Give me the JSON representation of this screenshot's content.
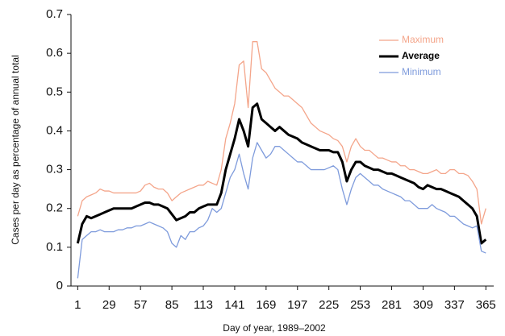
{
  "chart_data": {
    "type": "line",
    "xlabel": "Day of year, 1989–2002",
    "ylabel": "Cases per day as percentage of annual total",
    "x": [
      1,
      5,
      9,
      13,
      17,
      21,
      25,
      29,
      33,
      37,
      41,
      45,
      49,
      53,
      57,
      61,
      65,
      69,
      73,
      77,
      81,
      85,
      89,
      93,
      97,
      101,
      105,
      109,
      113,
      117,
      121,
      125,
      129,
      133,
      137,
      141,
      145,
      149,
      153,
      157,
      161,
      165,
      169,
      173,
      177,
      181,
      185,
      189,
      193,
      197,
      201,
      205,
      209,
      213,
      217,
      221,
      225,
      229,
      233,
      237,
      241,
      245,
      249,
      253,
      257,
      261,
      265,
      269,
      273,
      277,
      281,
      285,
      289,
      293,
      297,
      301,
      305,
      309,
      313,
      317,
      321,
      325,
      329,
      333,
      337,
      341,
      345,
      349,
      353,
      357,
      361,
      365
    ],
    "series": [
      {
        "name": "Maximum",
        "color": "#f4a58a",
        "width": 1.3,
        "values": [
          0.18,
          0.22,
          0.23,
          0.235,
          0.24,
          0.25,
          0.245,
          0.245,
          0.24,
          0.24,
          0.24,
          0.24,
          0.24,
          0.24,
          0.245,
          0.26,
          0.265,
          0.255,
          0.25,
          0.25,
          0.24,
          0.22,
          0.23,
          0.24,
          0.245,
          0.25,
          0.255,
          0.26,
          0.26,
          0.27,
          0.265,
          0.26,
          0.3,
          0.38,
          0.42,
          0.47,
          0.57,
          0.58,
          0.46,
          0.63,
          0.63,
          0.56,
          0.55,
          0.53,
          0.51,
          0.5,
          0.49,
          0.49,
          0.48,
          0.47,
          0.46,
          0.44,
          0.42,
          0.41,
          0.4,
          0.395,
          0.39,
          0.38,
          0.375,
          0.36,
          0.32,
          0.36,
          0.38,
          0.36,
          0.35,
          0.35,
          0.34,
          0.33,
          0.33,
          0.325,
          0.32,
          0.32,
          0.31,
          0.31,
          0.3,
          0.3,
          0.295,
          0.29,
          0.29,
          0.295,
          0.3,
          0.29,
          0.29,
          0.3,
          0.3,
          0.29,
          0.29,
          0.285,
          0.27,
          0.25,
          0.16,
          0.2
        ]
      },
      {
        "name": "Average",
        "color": "#000000",
        "width": 3,
        "values": [
          0.11,
          0.16,
          0.18,
          0.175,
          0.18,
          0.185,
          0.19,
          0.195,
          0.2,
          0.2,
          0.2,
          0.2,
          0.2,
          0.205,
          0.21,
          0.215,
          0.215,
          0.21,
          0.21,
          0.205,
          0.2,
          0.185,
          0.17,
          0.175,
          0.18,
          0.19,
          0.19,
          0.2,
          0.205,
          0.21,
          0.21,
          0.21,
          0.24,
          0.3,
          0.34,
          0.38,
          0.43,
          0.4,
          0.36,
          0.46,
          0.47,
          0.43,
          0.42,
          0.41,
          0.4,
          0.41,
          0.4,
          0.39,
          0.385,
          0.38,
          0.37,
          0.365,
          0.36,
          0.355,
          0.35,
          0.35,
          0.35,
          0.345,
          0.345,
          0.32,
          0.27,
          0.3,
          0.32,
          0.32,
          0.31,
          0.305,
          0.3,
          0.3,
          0.295,
          0.29,
          0.29,
          0.285,
          0.28,
          0.275,
          0.27,
          0.265,
          0.255,
          0.25,
          0.26,
          0.255,
          0.25,
          0.25,
          0.245,
          0.24,
          0.235,
          0.23,
          0.22,
          0.21,
          0.2,
          0.18,
          0.11,
          0.12
        ]
      },
      {
        "name": "Minimum",
        "color": "#7e9bdc",
        "width": 1.3,
        "values": [
          0.02,
          0.12,
          0.13,
          0.14,
          0.14,
          0.145,
          0.14,
          0.14,
          0.14,
          0.145,
          0.145,
          0.15,
          0.15,
          0.155,
          0.155,
          0.16,
          0.165,
          0.16,
          0.155,
          0.15,
          0.14,
          0.11,
          0.1,
          0.13,
          0.12,
          0.14,
          0.14,
          0.15,
          0.155,
          0.17,
          0.2,
          0.19,
          0.2,
          0.24,
          0.28,
          0.3,
          0.34,
          0.29,
          0.25,
          0.33,
          0.37,
          0.35,
          0.33,
          0.34,
          0.36,
          0.36,
          0.35,
          0.34,
          0.33,
          0.32,
          0.32,
          0.31,
          0.3,
          0.3,
          0.3,
          0.3,
          0.305,
          0.31,
          0.3,
          0.25,
          0.21,
          0.25,
          0.28,
          0.29,
          0.28,
          0.27,
          0.26,
          0.26,
          0.25,
          0.245,
          0.24,
          0.235,
          0.23,
          0.22,
          0.22,
          0.21,
          0.2,
          0.2,
          0.2,
          0.21,
          0.2,
          0.195,
          0.19,
          0.18,
          0.18,
          0.17,
          0.16,
          0.155,
          0.15,
          0.155,
          0.09,
          0.085
        ]
      }
    ],
    "xlim": [
      -5,
      372
    ],
    "xticks": [
      1,
      29,
      57,
      85,
      113,
      141,
      169,
      197,
      225,
      253,
      281,
      309,
      337,
      365
    ],
    "ylim": [
      0,
      0.7
    ],
    "yticks": [
      0,
      0.1,
      0.2,
      0.3,
      0.4,
      0.5,
      0.6,
      0.7
    ],
    "legend": "upper right",
    "grid": false
  }
}
